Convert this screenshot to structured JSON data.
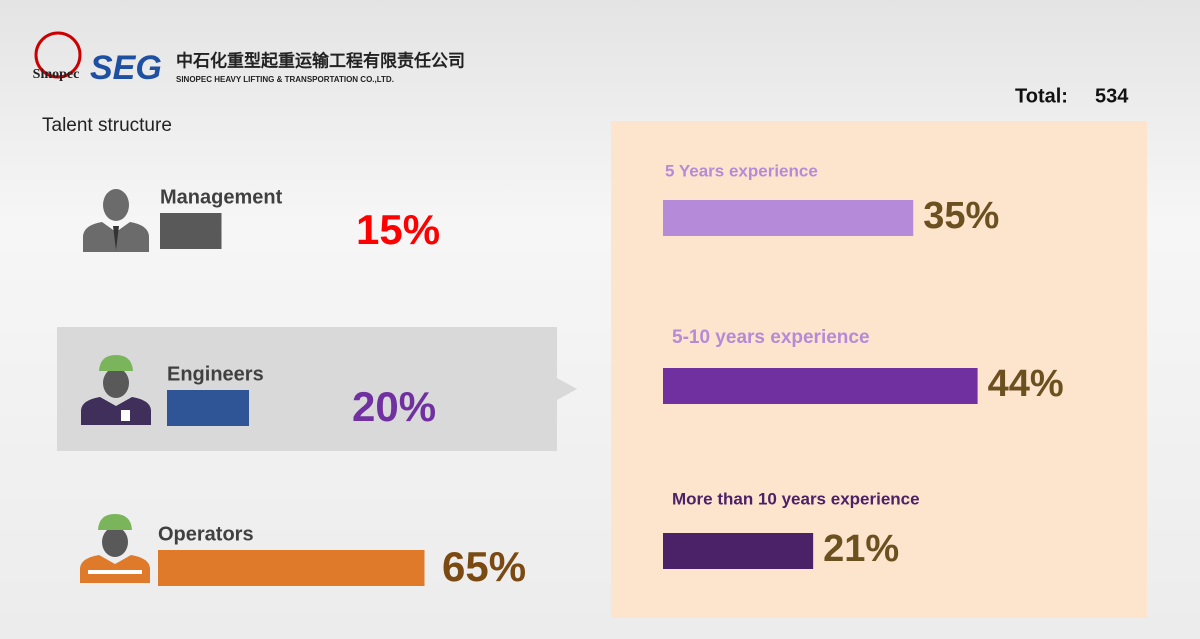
{
  "header": {
    "brand": "SEG",
    "sinopec": "Sinopec",
    "company_cn": "中石化重型起重运输工程有限责任公司",
    "company_en": "SINOPEC HEAVY LIFTING & TRANSPORTATION CO.,LTD.",
    "total_label": "Total:",
    "total": 534
  },
  "chart_data": [
    {
      "type": "bar",
      "title": "Talent structure",
      "categories": [
        "Management",
        "Engineers",
        "Operators"
      ],
      "values": [
        15,
        20,
        65
      ],
      "value_labels": [
        "15%",
        "20%",
        "65%"
      ],
      "colors": [
        "#595959",
        "#2f5597",
        "#e07a2b"
      ],
      "label_colors": [
        "#ff0000",
        "#7030a0",
        "#7a4a12"
      ],
      "xlim": [
        0,
        100
      ]
    },
    {
      "type": "bar",
      "categories": [
        "5 Years experience",
        "5-10 years experience",
        "More than 10 years experience"
      ],
      "values": [
        35,
        44,
        21
      ],
      "value_labels": [
        "35%",
        "44%",
        "21%"
      ],
      "colors": [
        "#b58ad9",
        "#7030a0",
        "#4b2168"
      ],
      "category_colors": [
        "#b58ad9",
        "#b58ad9",
        "#4b2168"
      ],
      "label_color": "#6b5020",
      "xlim": [
        0,
        100
      ]
    }
  ]
}
